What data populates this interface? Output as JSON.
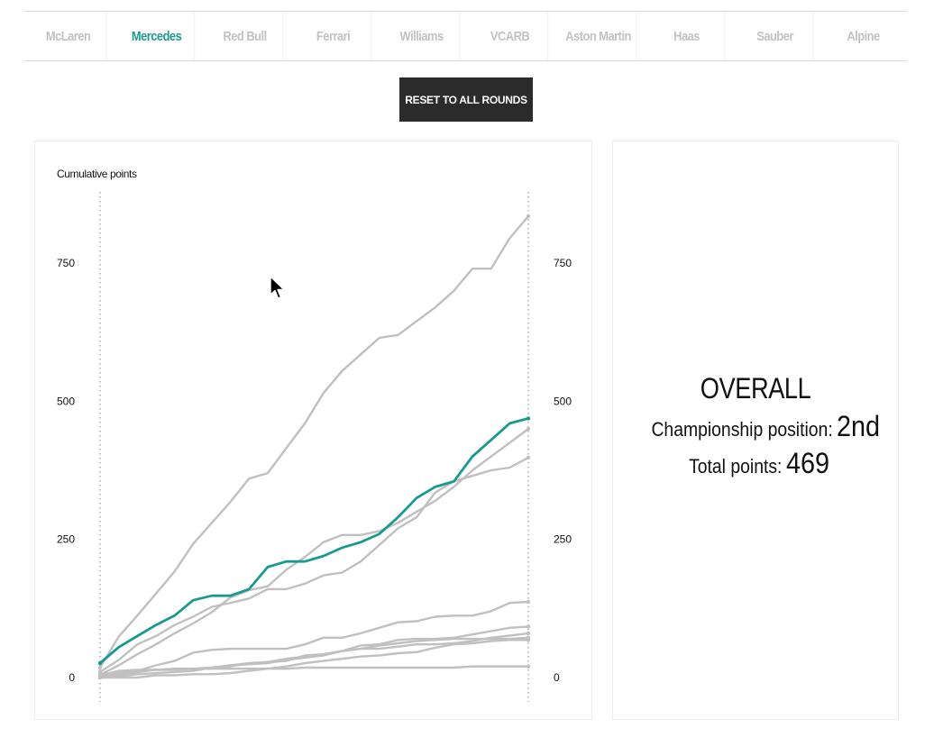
{
  "tabs": [
    {
      "label": "McLaren"
    },
    {
      "label": "Mercedes",
      "active": true
    },
    {
      "label": "Red Bull"
    },
    {
      "label": "Ferrari"
    },
    {
      "label": "Williams"
    },
    {
      "label": "VCARB"
    },
    {
      "label": "Aston Martin"
    },
    {
      "label": "Haas"
    },
    {
      "label": "Sauber"
    },
    {
      "label": "Alpine"
    }
  ],
  "reset_label": "RESET TO ALL ROUNDS",
  "summary": {
    "heading": "OVERALL",
    "position_label": "Championship position:",
    "position_value": "2nd",
    "points_label": "Total points:",
    "points_value": "469"
  },
  "colors": {
    "highlight": "#1a9a8f",
    "others": "#c0c0c0",
    "button": "#2b2b2b"
  },
  "chart_data": {
    "type": "line",
    "ylabel": "Cumulative points",
    "ylim": [
      0,
      850
    ],
    "yticks": [
      0,
      250,
      500,
      750
    ],
    "y_axis_both_sides": true,
    "x": [
      1,
      2,
      3,
      4,
      5,
      6,
      7,
      8,
      9,
      10,
      11,
      12,
      13,
      14,
      15,
      16,
      17,
      18,
      19,
      20,
      21,
      22,
      23,
      24
    ],
    "highlight_series": "Mercedes",
    "series": [
      {
        "name": "McLaren",
        "values": [
          18,
          74,
          112,
          152,
          192,
          242,
          280,
          318,
          360,
          370,
          415,
          460,
          515,
          555,
          585,
          615,
          620,
          645,
          670,
          700,
          740,
          740,
          795,
          835
        ]
      },
      {
        "name": "Mercedes",
        "values": [
          26,
          55,
          75,
          95,
          112,
          140,
          148,
          148,
          160,
          200,
          210,
          210,
          220,
          235,
          245,
          260,
          290,
          325,
          345,
          355,
          400,
          430,
          460,
          469
        ]
      },
      {
        "name": "Red Bull",
        "values": [
          10,
          32,
          60,
          75,
          95,
          110,
          128,
          135,
          143,
          160,
          160,
          170,
          185,
          190,
          210,
          240,
          270,
          290,
          335,
          355,
          365,
          375,
          380,
          398
        ]
      },
      {
        "name": "Ferrari",
        "values": [
          5,
          22,
          42,
          60,
          80,
          98,
          118,
          145,
          158,
          165,
          195,
          218,
          245,
          258,
          258,
          265,
          280,
          300,
          320,
          345,
          375,
          400,
          425,
          450
        ]
      },
      {
        "name": "Williams",
        "values": [
          0,
          5,
          12,
          22,
          30,
          45,
          50,
          52,
          52,
          52,
          52,
          60,
          72,
          72,
          80,
          90,
          100,
          102,
          110,
          112,
          112,
          120,
          135,
          137
        ]
      },
      {
        "name": "VCARB",
        "values": [
          2,
          8,
          12,
          14,
          16,
          16,
          16,
          20,
          26,
          28,
          30,
          40,
          42,
          48,
          58,
          60,
          68,
          70,
          70,
          72,
          78,
          84,
          90,
          92
        ]
      },
      {
        "name": "Aston Martin",
        "values": [
          0,
          4,
          10,
          14,
          14,
          16,
          18,
          22,
          24,
          26,
          32,
          36,
          40,
          48,
          52,
          52,
          56,
          60,
          60,
          62,
          66,
          72,
          76,
          80
        ]
      },
      {
        "name": "Haas",
        "values": [
          0,
          2,
          6,
          8,
          10,
          12,
          18,
          22,
          26,
          28,
          34,
          38,
          42,
          48,
          52,
          58,
          62,
          66,
          68,
          70,
          70,
          70,
          70,
          72
        ]
      },
      {
        "name": "Sauber",
        "values": [
          0,
          0,
          0,
          4,
          4,
          6,
          6,
          8,
          12,
          16,
          20,
          26,
          30,
          34,
          38,
          40,
          44,
          46,
          54,
          60,
          62,
          66,
          68,
          68
        ]
      },
      {
        "name": "Alpine",
        "values": [
          4,
          12,
          14,
          14,
          14,
          16,
          16,
          16,
          16,
          16,
          16,
          18,
          18,
          18,
          18,
          18,
          18,
          18,
          18,
          18,
          20,
          20,
          20,
          20
        ]
      }
    ]
  }
}
